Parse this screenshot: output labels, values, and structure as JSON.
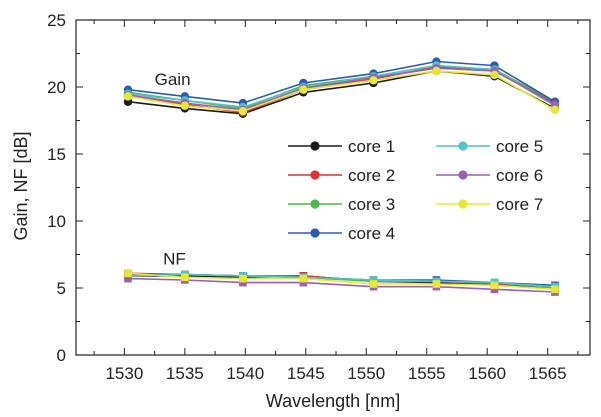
{
  "chart_data": {
    "type": "line",
    "xlabel": "Wavelength [nm]",
    "ylabel": "Gain, NF [dB]",
    "xlim": [
      1526,
      1568.5
    ],
    "ylim": [
      0,
      25
    ],
    "x_ticks": [
      "1530",
      "1535",
      "1540",
      "1545",
      "1550",
      "1555",
      "1560",
      "1565"
    ],
    "y_ticks": [
      "0",
      "5",
      "10",
      "15",
      "20",
      "25"
    ],
    "grid": false,
    "legend_placement": "center-right",
    "annotations": [
      {
        "text": "Gain",
        "x": 1532.5,
        "y": 20.6
      },
      {
        "text": "NF",
        "x": 1533.2,
        "y": 7.2
      }
    ],
    "x": [
      1530.3,
      1535.0,
      1539.8,
      1544.8,
      1550.6,
      1555.8,
      1560.6,
      1565.6
    ],
    "series": [
      {
        "name": "core 1",
        "color": "#1a1a1a",
        "gain": [
          18.9,
          18.4,
          18.0,
          19.6,
          20.3,
          21.2,
          20.8,
          18.4
        ],
        "nf": [
          5.9,
          5.9,
          5.8,
          5.9,
          5.5,
          5.4,
          5.3,
          5.0
        ]
      },
      {
        "name": "core 2",
        "color": "#e03030",
        "gain": [
          19.3,
          18.7,
          18.1,
          19.8,
          20.6,
          21.5,
          21.3,
          18.8
        ],
        "nf": [
          6.1,
          6.0,
          5.9,
          5.9,
          5.5,
          5.5,
          5.3,
          5.1
        ]
      },
      {
        "name": "core 3",
        "color": "#4db848",
        "gain": [
          19.6,
          19.0,
          18.4,
          20.1,
          20.8,
          21.6,
          21.3,
          18.9
        ],
        "nf": [
          6.0,
          6.0,
          5.9,
          5.8,
          5.5,
          5.5,
          5.4,
          5.0
        ]
      },
      {
        "name": "core 4",
        "color": "#2a5db0",
        "gain": [
          19.8,
          19.3,
          18.8,
          20.3,
          21.0,
          21.9,
          21.6,
          18.9
        ],
        "nf": [
          6.0,
          6.0,
          5.9,
          5.8,
          5.6,
          5.6,
          5.4,
          5.2
        ]
      },
      {
        "name": "core 5",
        "color": "#4ec4cc",
        "gain": [
          19.5,
          19.0,
          18.5,
          20.0,
          20.8,
          21.6,
          21.3,
          18.6
        ],
        "nf": [
          5.9,
          6.0,
          5.9,
          5.8,
          5.6,
          5.5,
          5.4,
          5.1
        ]
      },
      {
        "name": "core 6",
        "color": "#9b5fb5",
        "gain": [
          19.4,
          18.8,
          18.3,
          19.9,
          20.7,
          21.4,
          21.2,
          18.7
        ],
        "nf": [
          5.7,
          5.6,
          5.4,
          5.4,
          5.1,
          5.1,
          4.9,
          4.7
        ]
      },
      {
        "name": "core 7",
        "color": "#e8e830",
        "gain": [
          19.3,
          18.6,
          18.2,
          19.8,
          20.5,
          21.2,
          20.9,
          18.3
        ],
        "nf": [
          6.1,
          5.8,
          5.7,
          5.7,
          5.3,
          5.3,
          5.2,
          4.9
        ]
      }
    ]
  }
}
